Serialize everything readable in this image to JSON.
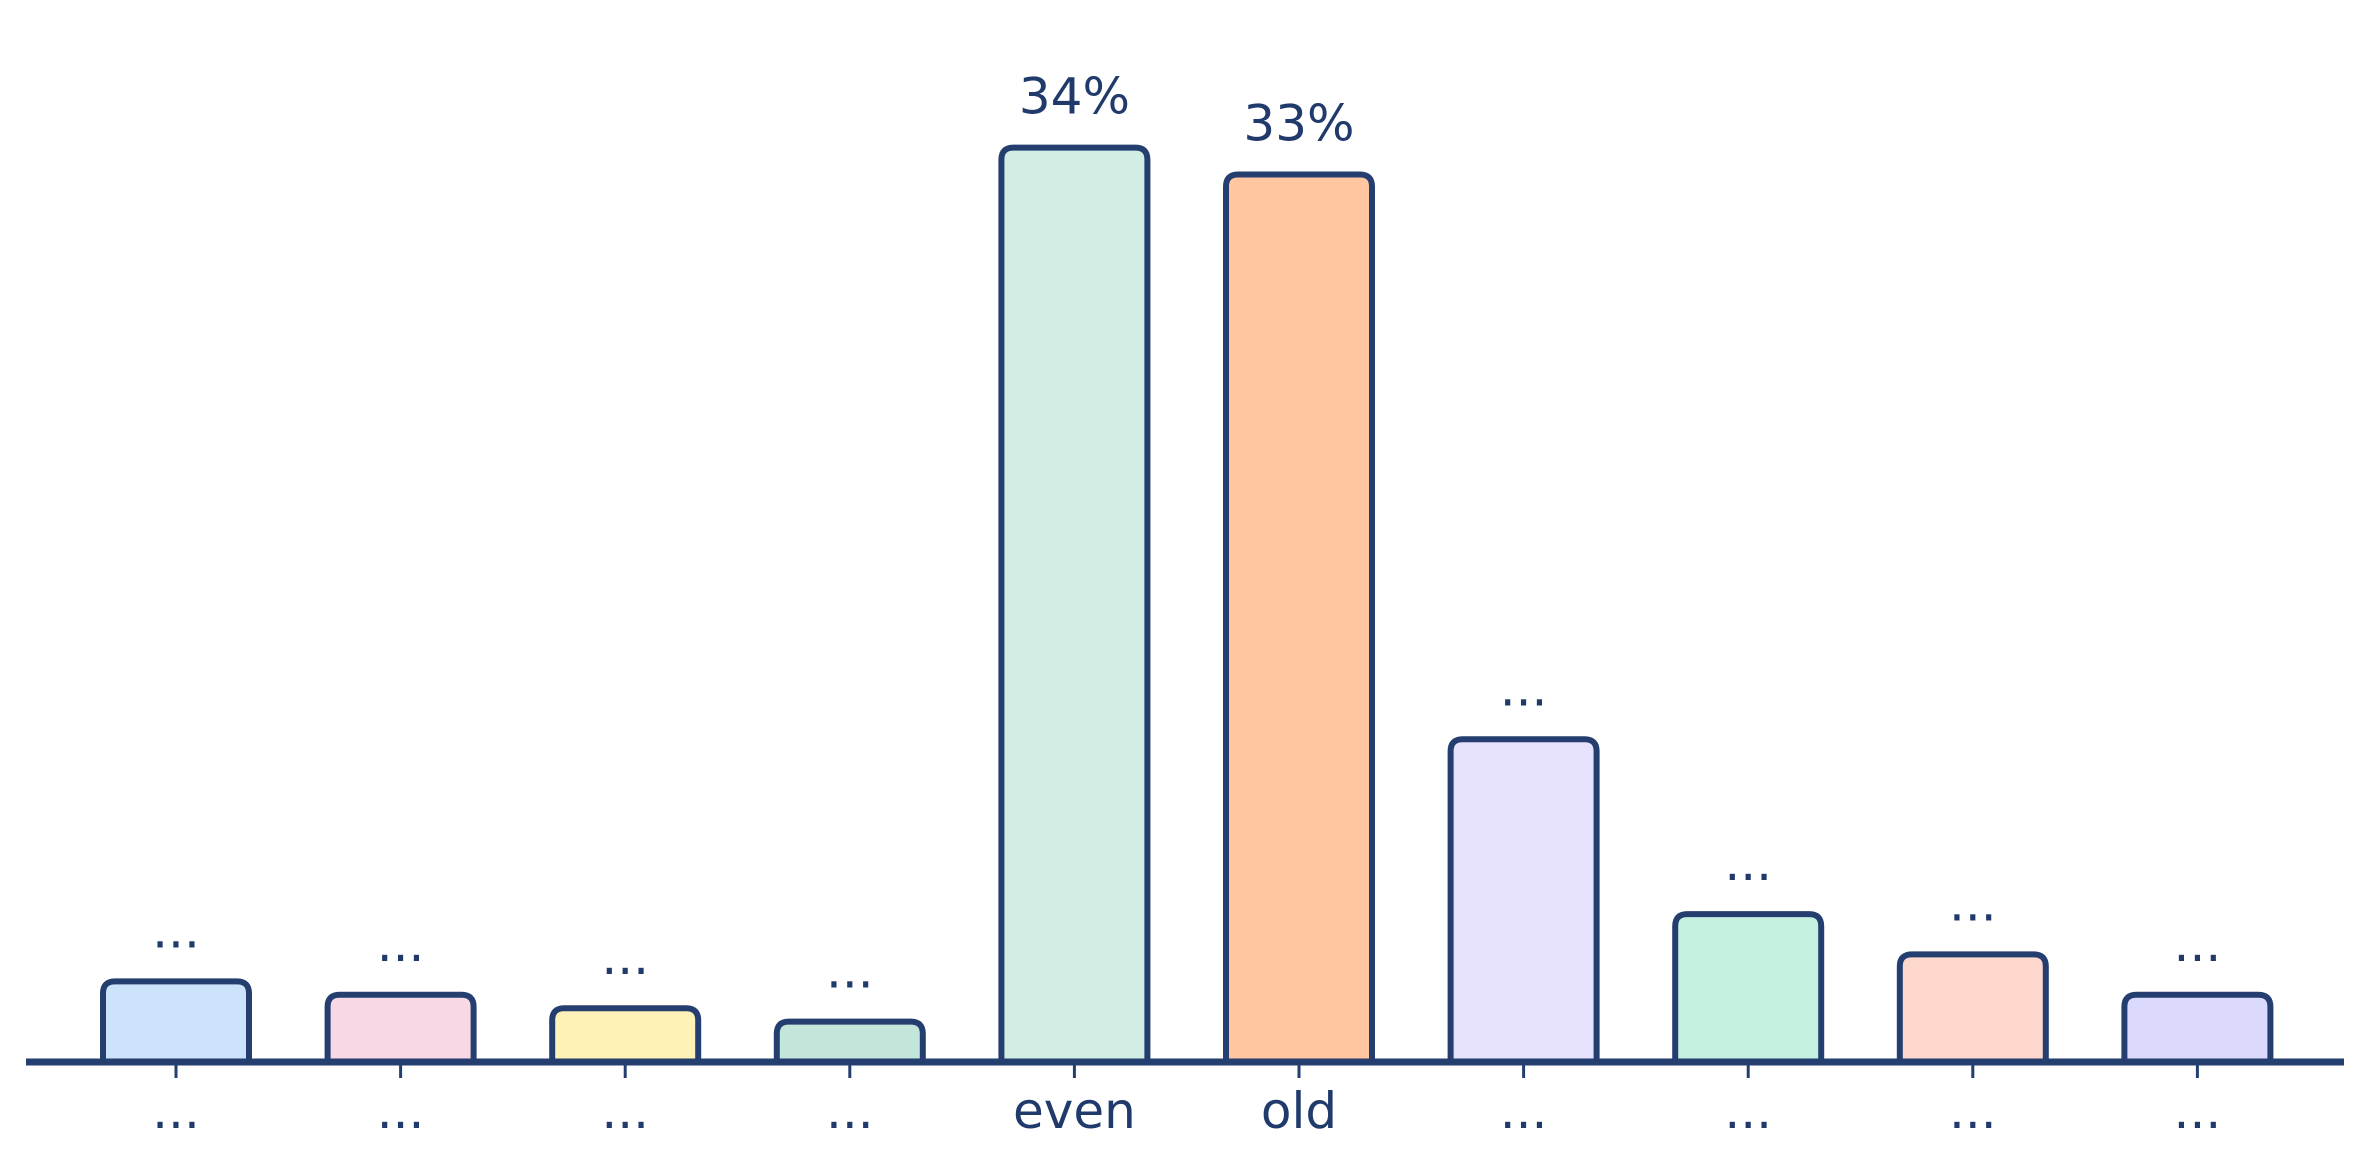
{
  "colors": {
    "outline": "#233e6f",
    "text": "#1f3a6b",
    "background": "#ffffff"
  },
  "chart_data": {
    "type": "bar",
    "title": "",
    "xlabel": "",
    "ylabel": "",
    "ylim": [
      0,
      38
    ],
    "grid": false,
    "legend": "none",
    "categories": [
      "...",
      "...",
      "...",
      "...",
      "even",
      "old",
      "...",
      "...",
      "...",
      "..."
    ],
    "values": [
      3.0,
      2.5,
      2.0,
      1.5,
      34,
      33,
      12,
      5.5,
      4.0,
      2.5
    ],
    "value_labels": [
      "...",
      "...",
      "...",
      "...",
      "34%",
      "33%",
      "...",
      "...",
      "...",
      "..."
    ],
    "bar_colors": [
      "#cce3fb",
      "#f9d8e6",
      "#fff2b8",
      "#c3e6db",
      "#d2ede3",
      "#ffc6a0",
      "#e6e1fc",
      "#c5f0df",
      "#fdd6cc",
      "#dcdafc"
    ]
  }
}
